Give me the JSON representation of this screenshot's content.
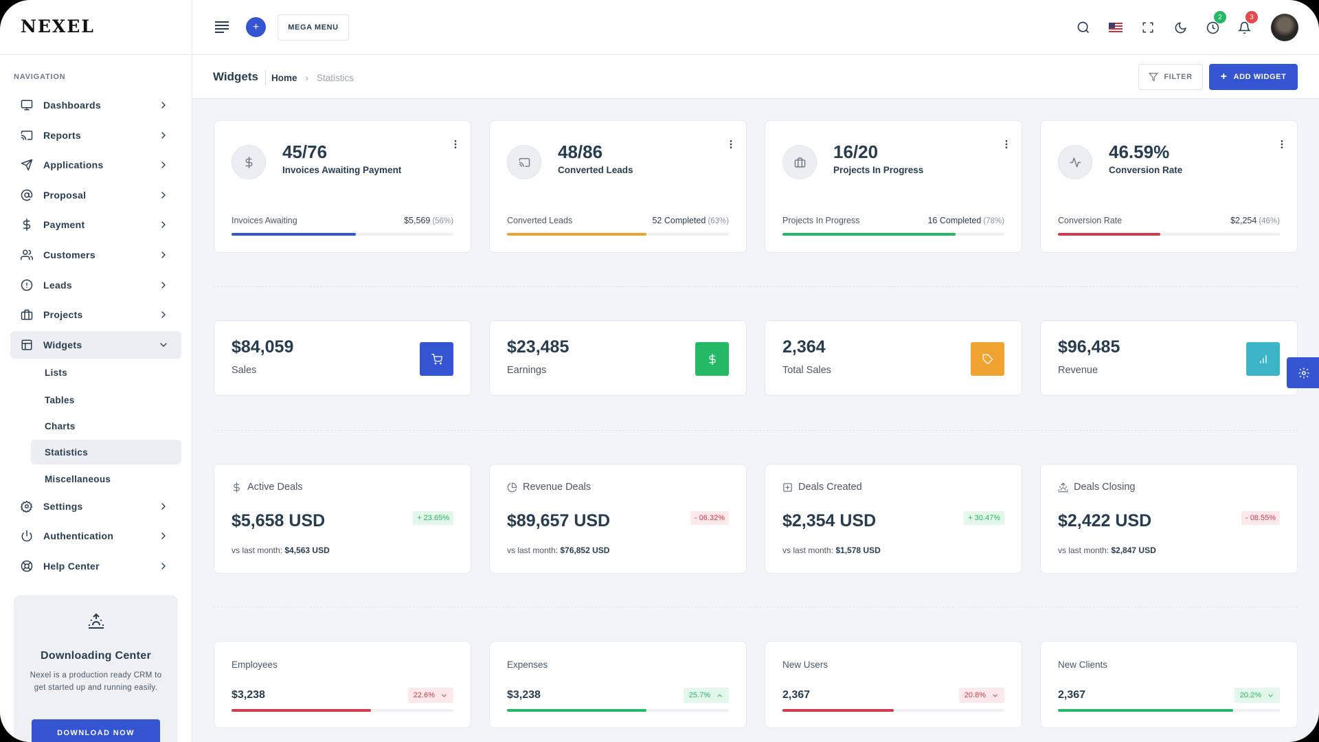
{
  "brand": {
    "logo": "NEXEL"
  },
  "colors": {
    "primary": "#3454d1",
    "success": "#25b865",
    "warning": "#f0a330",
    "danger": "#d13b4c",
    "info": "#3db4c8"
  },
  "sidebar": {
    "caption": "NAVIGATION",
    "items": [
      {
        "label": "Dashboards",
        "icon": "monitor-icon"
      },
      {
        "label": "Reports",
        "icon": "cast-icon"
      },
      {
        "label": "Applications",
        "icon": "send-icon"
      },
      {
        "label": "Proposal",
        "icon": "at-sign-icon"
      },
      {
        "label": "Payment",
        "icon": "dollar-icon"
      },
      {
        "label": "Customers",
        "icon": "users-icon"
      },
      {
        "label": "Leads",
        "icon": "alert-circle-icon"
      },
      {
        "label": "Projects",
        "icon": "briefcase-icon"
      },
      {
        "label": "Widgets",
        "icon": "layout-icon",
        "expanded": true
      }
    ],
    "subitems": [
      {
        "label": "Lists"
      },
      {
        "label": "Tables"
      },
      {
        "label": "Charts"
      },
      {
        "label": "Statistics",
        "active": true
      },
      {
        "label": "Miscellaneous"
      }
    ],
    "items_after": [
      {
        "label": "Settings",
        "icon": "settings-icon"
      },
      {
        "label": "Authentication",
        "icon": "power-icon"
      },
      {
        "label": "Help Center",
        "icon": "life-buoy-icon"
      }
    ],
    "download": {
      "title": "Downloading Center",
      "description": "Nexel is a production ready CRM to get started up and running easily.",
      "button": "DOWNLOAD NOW"
    }
  },
  "header": {
    "mega_menu": "MEGA MENU",
    "clock_badge": "2",
    "bell_badge": "3"
  },
  "page": {
    "title": "Widgets",
    "breadcrumb": {
      "home": "Home",
      "current": "Statistics"
    },
    "filter": "FILTER",
    "add_widget": "ADD WIDGET"
  },
  "row1": [
    {
      "value": "45/76",
      "label": "Invoices Awaiting Payment",
      "icon": "dollar-icon",
      "bottom_label": "Invoices Awaiting",
      "bottom_value": "$5,569",
      "bottom_pct": "(56%)",
      "progress": 56,
      "color": "#3454d1"
    },
    {
      "value": "48/86",
      "label": "Converted Leads",
      "icon": "cast-icon",
      "bottom_label": "Converted Leads",
      "bottom_value": "52 Completed",
      "bottom_pct": "(63%)",
      "progress": 63,
      "color": "#f0a330"
    },
    {
      "value": "16/20",
      "label": "Projects In Progress",
      "icon": "briefcase-icon",
      "bottom_label": "Projects In Progress",
      "bottom_value": "16 Completed",
      "bottom_pct": "(78%)",
      "progress": 78,
      "color": "#25b865"
    },
    {
      "value": "46.59%",
      "label": "Conversion Rate",
      "icon": "activity-icon",
      "bottom_label": "Conversion Rate",
      "bottom_value": "$2,254",
      "bottom_pct": "(46%)",
      "progress": 46,
      "color": "#d13b4c"
    }
  ],
  "row2": [
    {
      "value": "$84,059",
      "label": "Sales",
      "icon": "cart-icon",
      "color": "#3454d1"
    },
    {
      "value": "$23,485",
      "label": "Earnings",
      "icon": "dollar-icon",
      "color": "#25b865"
    },
    {
      "value": "2,364",
      "label": "Total Sales",
      "icon": "tag-icon",
      "color": "#f0a330"
    },
    {
      "value": "$96,485",
      "label": "Revenue",
      "icon": "bar-chart-icon",
      "color": "#3db4c8"
    }
  ],
  "row3": [
    {
      "title": "Active Deals",
      "icon": "dollar-icon",
      "value": "$5,658 USD",
      "change": "+ 23.65%",
      "trend": "up",
      "vs_label": "vs last month:",
      "vs_value": "$4,563 USD"
    },
    {
      "title": "Revenue Deals",
      "icon": "pie-chart-icon",
      "value": "$89,657 USD",
      "change": "- 06.32%",
      "trend": "down",
      "vs_label": "vs last month:",
      "vs_value": "$76,852 USD"
    },
    {
      "title": "Deals Created",
      "icon": "plus-square-icon",
      "value": "$2,354 USD",
      "change": "+ 30.47%",
      "trend": "up",
      "vs_label": "vs last month:",
      "vs_value": "$1,578 USD"
    },
    {
      "title": "Deals Closing",
      "icon": "sunrise-icon",
      "value": "$2,422 USD",
      "change": "- 08.55%",
      "trend": "down",
      "vs_label": "vs last month:",
      "vs_value": "$2,847 USD"
    }
  ],
  "row4": [
    {
      "title": "Employees",
      "value": "$3,238",
      "change": "22.6%",
      "trend": "down",
      "chevron": "down",
      "progress": 63,
      "color": "#d13b4c"
    },
    {
      "title": "Expenses",
      "value": "$3,238",
      "change": "25.7%",
      "trend": "up",
      "chevron": "up",
      "progress": 63,
      "color": "#25b865"
    },
    {
      "title": "New Users",
      "value": "2,367",
      "change": "20.8%",
      "trend": "down",
      "chevron": "down",
      "progress": 50,
      "color": "#d13b4c"
    },
    {
      "title": "New Clients",
      "value": "2,367",
      "change": "20.2%",
      "trend": "up",
      "chevron": "down",
      "progress": 79,
      "color": "#25b865"
    }
  ]
}
